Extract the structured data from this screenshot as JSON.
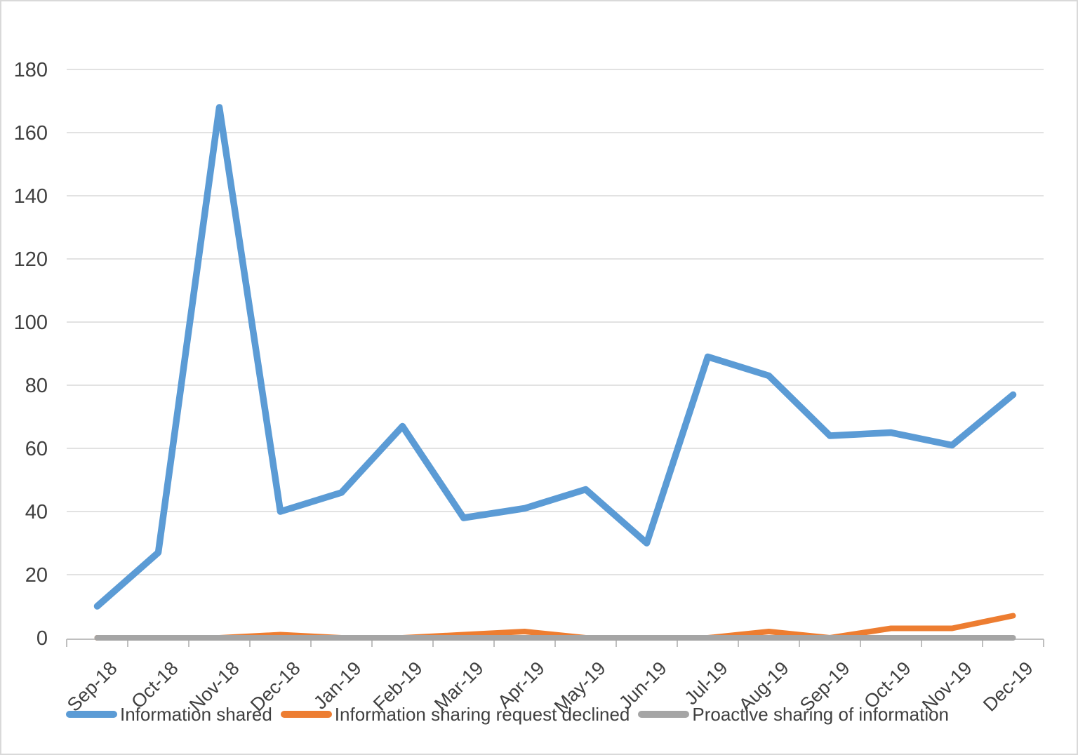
{
  "chart_data": {
    "type": "line",
    "title": "",
    "categories": [
      "Sep-18",
      "Oct-18",
      "Nov-18",
      "Dec-18",
      "Jan-19",
      "Feb-19",
      "Mar-19",
      "Apr-19",
      "May-19",
      "Jun-19",
      "Jul-19",
      "Aug-19",
      "Sep-19",
      "Oct-19",
      "Nov-19",
      "Dec-19"
    ],
    "series": [
      {
        "name": "Information shared",
        "color": "#5B9BD5",
        "values": [
          10,
          27,
          168,
          40,
          46,
          67,
          38,
          41,
          47,
          30,
          89,
          83,
          64,
          65,
          61,
          77
        ]
      },
      {
        "name": "Information sharing request declined",
        "color": "#ED7D31",
        "values": [
          0,
          0,
          0,
          1,
          0,
          0,
          1,
          2,
          0,
          0,
          0,
          2,
          0,
          3,
          3,
          7
        ]
      },
      {
        "name": "Proactive sharing of information",
        "color": "#A5A5A5",
        "values": [
          0,
          0,
          0,
          0,
          0,
          0,
          0,
          0,
          0,
          0,
          0,
          0,
          0,
          0,
          0,
          0
        ]
      }
    ],
    "xlabel": "",
    "ylabel": "",
    "ylim": [
      0,
      180
    ],
    "y_ticks": [
      0,
      20,
      40,
      60,
      80,
      100,
      120,
      140,
      160,
      180
    ],
    "grid": true,
    "legend_position": "bottom",
    "x_label_rotation": -45
  },
  "style_colors": {
    "background": "#FFFFFF",
    "frame_border": "#D9D9D9",
    "gridline": "#D9D9D9",
    "axis_line": "#BFBFBF",
    "label_text": "#404040"
  }
}
